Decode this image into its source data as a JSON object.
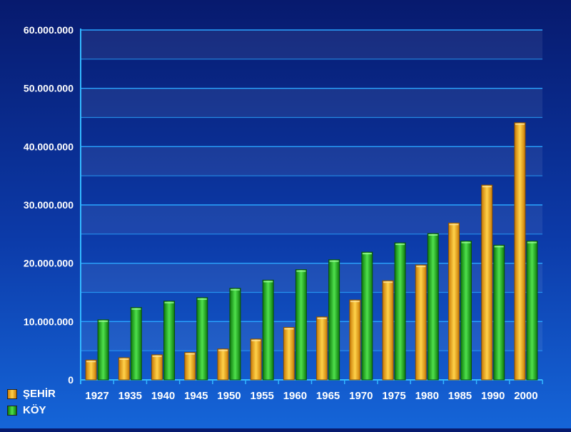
{
  "chart_data": {
    "type": "bar",
    "title": "",
    "xlabel": "",
    "ylabel": "",
    "categories": [
      "1927",
      "1935",
      "1940",
      "1945",
      "1950",
      "1955",
      "1960",
      "1965",
      "1970",
      "1975",
      "1980",
      "1985",
      "1990",
      "2000"
    ],
    "series": [
      {
        "name": "ŞEHİR",
        "color": "#f5a31a",
        "values": [
          3400000,
          3800000,
          4300000,
          4700000,
          5300000,
          7000000,
          9000000,
          10800000,
          13700000,
          17000000,
          19700000,
          26900000,
          33400000,
          44100000
        ]
      },
      {
        "name": "KÖY",
        "color": "#1fb81c",
        "values": [
          10300000,
          12400000,
          13500000,
          14100000,
          15700000,
          17100000,
          18900000,
          20600000,
          21900000,
          23500000,
          25100000,
          23800000,
          23100000,
          23800000
        ]
      }
    ],
    "ylim": [
      0,
      60000000
    ],
    "yticks": [
      0,
      10000000,
      20000000,
      30000000,
      40000000,
      50000000,
      60000000
    ],
    "ytick_labels": [
      "0",
      "10.000.000",
      "20.000.000",
      "30.000.000",
      "40.000.000",
      "50.000.000",
      "60.000.000"
    ],
    "grid": true,
    "legend_position": "bottom-left"
  },
  "legend": {
    "items": [
      {
        "label": "ŞEHİR",
        "color": "#f5a31a"
      },
      {
        "label": "KÖY",
        "color": "#1fb81c"
      }
    ]
  }
}
